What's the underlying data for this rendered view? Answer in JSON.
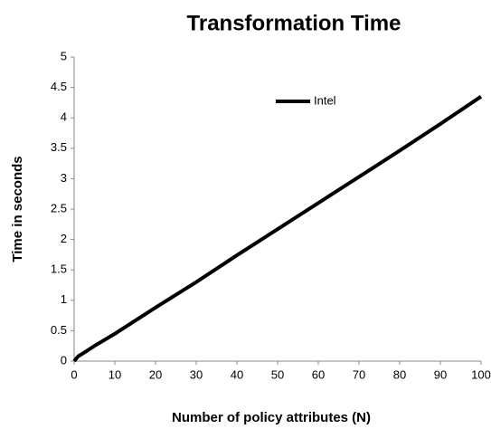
{
  "chart_data": {
    "type": "line",
    "title": "Transformation Time",
    "x_label": "Number of policy attributes (N)",
    "y_label": "Time in seconds",
    "x": [
      0,
      1,
      2,
      5,
      10,
      20,
      30,
      40,
      50,
      60,
      70,
      80,
      90,
      100
    ],
    "series": [
      {
        "name": "Intel",
        "color": "#000000",
        "values": [
          0,
          0.08,
          0.12,
          0.25,
          0.45,
          0.88,
          1.3,
          1.74,
          2.17,
          2.6,
          3.03,
          3.46,
          3.9,
          4.35
        ]
      }
    ],
    "xlim": [
      0,
      100
    ],
    "xticks": [
      0,
      10,
      20,
      30,
      40,
      50,
      60,
      70,
      80,
      90,
      100
    ],
    "ylim": [
      0,
      5
    ],
    "yticks": [
      0,
      0.5,
      1,
      1.5,
      2,
      2.5,
      3,
      3.5,
      4,
      4.5,
      5
    ],
    "grid": false,
    "legend": "top"
  }
}
